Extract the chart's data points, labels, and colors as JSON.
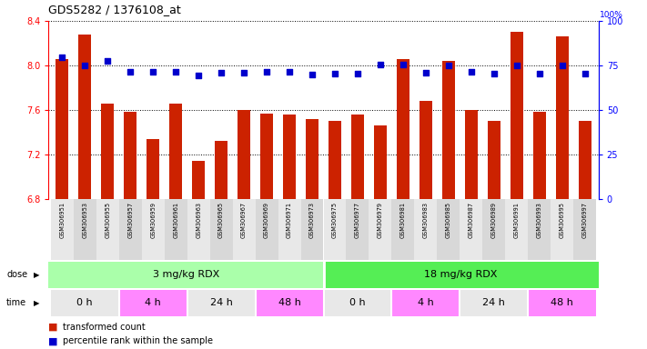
{
  "title": "GDS5282 / 1376108_at",
  "categories": [
    "GSM306951",
    "GSM306953",
    "GSM306955",
    "GSM306957",
    "GSM306959",
    "GSM306961",
    "GSM306963",
    "GSM306965",
    "GSM306967",
    "GSM306969",
    "GSM306971",
    "GSM306973",
    "GSM306975",
    "GSM306977",
    "GSM306979",
    "GSM306981",
    "GSM306983",
    "GSM306985",
    "GSM306987",
    "GSM306989",
    "GSM306991",
    "GSM306993",
    "GSM306995",
    "GSM306997"
  ],
  "bar_values": [
    8.06,
    8.28,
    7.66,
    7.58,
    7.34,
    7.66,
    7.14,
    7.32,
    7.6,
    7.57,
    7.56,
    7.52,
    7.5,
    7.56,
    7.46,
    8.06,
    7.68,
    8.04,
    7.6,
    7.5,
    8.3,
    7.58,
    8.26,
    7.5
  ],
  "percentile_values": [
    79.5,
    75.0,
    77.5,
    71.5,
    71.5,
    71.5,
    69.5,
    71.0,
    71.0,
    71.5,
    71.5,
    70.0,
    70.5,
    70.5,
    75.5,
    75.5,
    71.0,
    75.0,
    71.5,
    70.5,
    75.0,
    70.5,
    75.0,
    70.5
  ],
  "bar_color": "#cc2200",
  "percentile_color": "#0000cc",
  "ylim_left": [
    6.8,
    8.4
  ],
  "ylim_right": [
    0,
    100
  ],
  "yticks_left": [
    6.8,
    7.2,
    7.6,
    8.0,
    8.4
  ],
  "yticks_right": [
    0,
    25,
    50,
    75,
    100
  ],
  "dose_labels": [
    "3 mg/kg RDX",
    "18 mg/kg RDX"
  ],
  "dose_color_light": "#aaffaa",
  "dose_color_dark": "#55dd55",
  "time_groups": [
    [
      0,
      3,
      "0 h",
      "#e8e8e8"
    ],
    [
      3,
      6,
      "4 h",
      "#ff88ff"
    ],
    [
      6,
      9,
      "24 h",
      "#e8e8e8"
    ],
    [
      9,
      12,
      "48 h",
      "#ff88ff"
    ],
    [
      12,
      15,
      "0 h",
      "#e8e8e8"
    ],
    [
      15,
      18,
      "4 h",
      "#ff88ff"
    ],
    [
      18,
      21,
      "24 h",
      "#e8e8e8"
    ],
    [
      21,
      24,
      "48 h",
      "#ff88ff"
    ]
  ],
  "bar_color_legend": "#cc2200",
  "percentile_color_legend": "#0000cc"
}
